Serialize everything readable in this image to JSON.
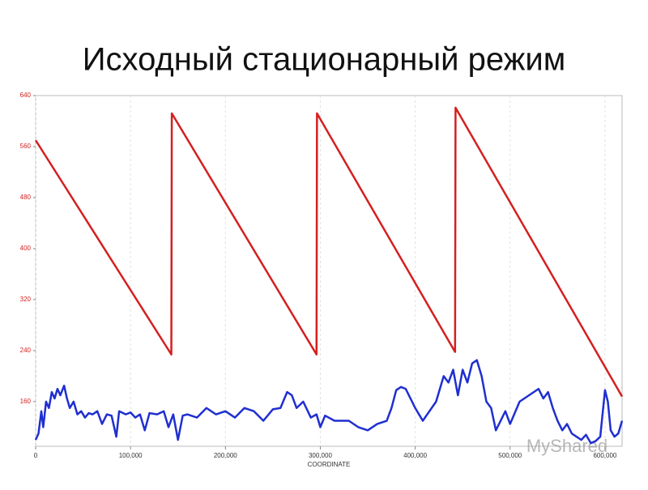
{
  "title": "Исходный стационарный режим",
  "watermark": "MyShared",
  "chart_data": {
    "type": "line",
    "x_label": "COORDINATE",
    "xlim": [
      0,
      618000
    ],
    "ylim": [
      90,
      640
    ],
    "xticks": [
      0,
      {
        "value": 100000,
        "label": "100,000"
      },
      {
        "value": 200000,
        "label": "200,000"
      },
      {
        "value": 300000,
        "label": "300,000"
      },
      {
        "value": 400000,
        "label": "400,000"
      },
      {
        "value": 500000,
        "label": "500,000"
      },
      {
        "value": 600000,
        "label": "600,000"
      }
    ],
    "yticks": [
      160,
      240,
      320,
      400,
      480,
      560,
      640
    ],
    "grid": true,
    "series": [
      {
        "color": "#d42020",
        "x": [
          0,
          143000,
          143500,
          296000,
          296500,
          442000,
          442500,
          618000
        ],
        "values": [
          570,
          234,
          612,
          234,
          612,
          238,
          621,
          168
        ]
      },
      {
        "color": "#1f2fd0",
        "x": [
          0,
          3000,
          6000,
          8000,
          11000,
          14000,
          17000,
          20000,
          23000,
          26000,
          30000,
          33000,
          36000,
          40000,
          44000,
          48000,
          52000,
          56000,
          60000,
          65000,
          70000,
          75000,
          80000,
          85000,
          88000,
          95000,
          100000,
          105000,
          110000,
          115000,
          120000,
          128000,
          135000,
          140000,
          145000,
          150000,
          155000,
          160000,
          170000,
          180000,
          190000,
          200000,
          210000,
          220000,
          230000,
          240000,
          250000,
          258000,
          265000,
          270000,
          275000,
          282000,
          290000,
          296000,
          300000,
          305000,
          315000,
          330000,
          340000,
          350000,
          360000,
          370000,
          375000,
          380000,
          385000,
          390000,
          395000,
          400000,
          408000,
          415000,
          422000,
          430000,
          435000,
          440000,
          445000,
          450000,
          455000,
          460000,
          465000,
          470000,
          475000,
          480000,
          485000,
          490000,
          495000,
          500000,
          510000,
          520000,
          530000,
          535000,
          540000,
          545000,
          550000,
          555000,
          560000,
          565000,
          570000,
          575000,
          580000,
          585000,
          590000,
          595000,
          600000,
          603000,
          606000,
          610000,
          614000,
          618000
        ],
        "values": [
          100,
          110,
          145,
          120,
          160,
          150,
          175,
          165,
          180,
          170,
          185,
          165,
          150,
          160,
          140,
          145,
          135,
          142,
          140,
          145,
          125,
          140,
          138,
          105,
          145,
          140,
          143,
          135,
          140,
          115,
          142,
          140,
          145,
          120,
          140,
          100,
          138,
          140,
          135,
          150,
          140,
          145,
          135,
          150,
          145,
          130,
          148,
          150,
          175,
          170,
          150,
          160,
          135,
          140,
          120,
          138,
          130,
          130,
          120,
          115,
          125,
          130,
          150,
          178,
          183,
          180,
          165,
          150,
          130,
          145,
          160,
          200,
          190,
          210,
          170,
          210,
          190,
          220,
          225,
          200,
          160,
          150,
          115,
          130,
          145,
          125,
          160,
          170,
          180,
          165,
          175,
          150,
          130,
          115,
          125,
          110,
          105,
          100,
          108,
          95,
          98,
          105,
          178,
          160,
          115,
          105,
          110,
          130
        ]
      }
    ]
  }
}
